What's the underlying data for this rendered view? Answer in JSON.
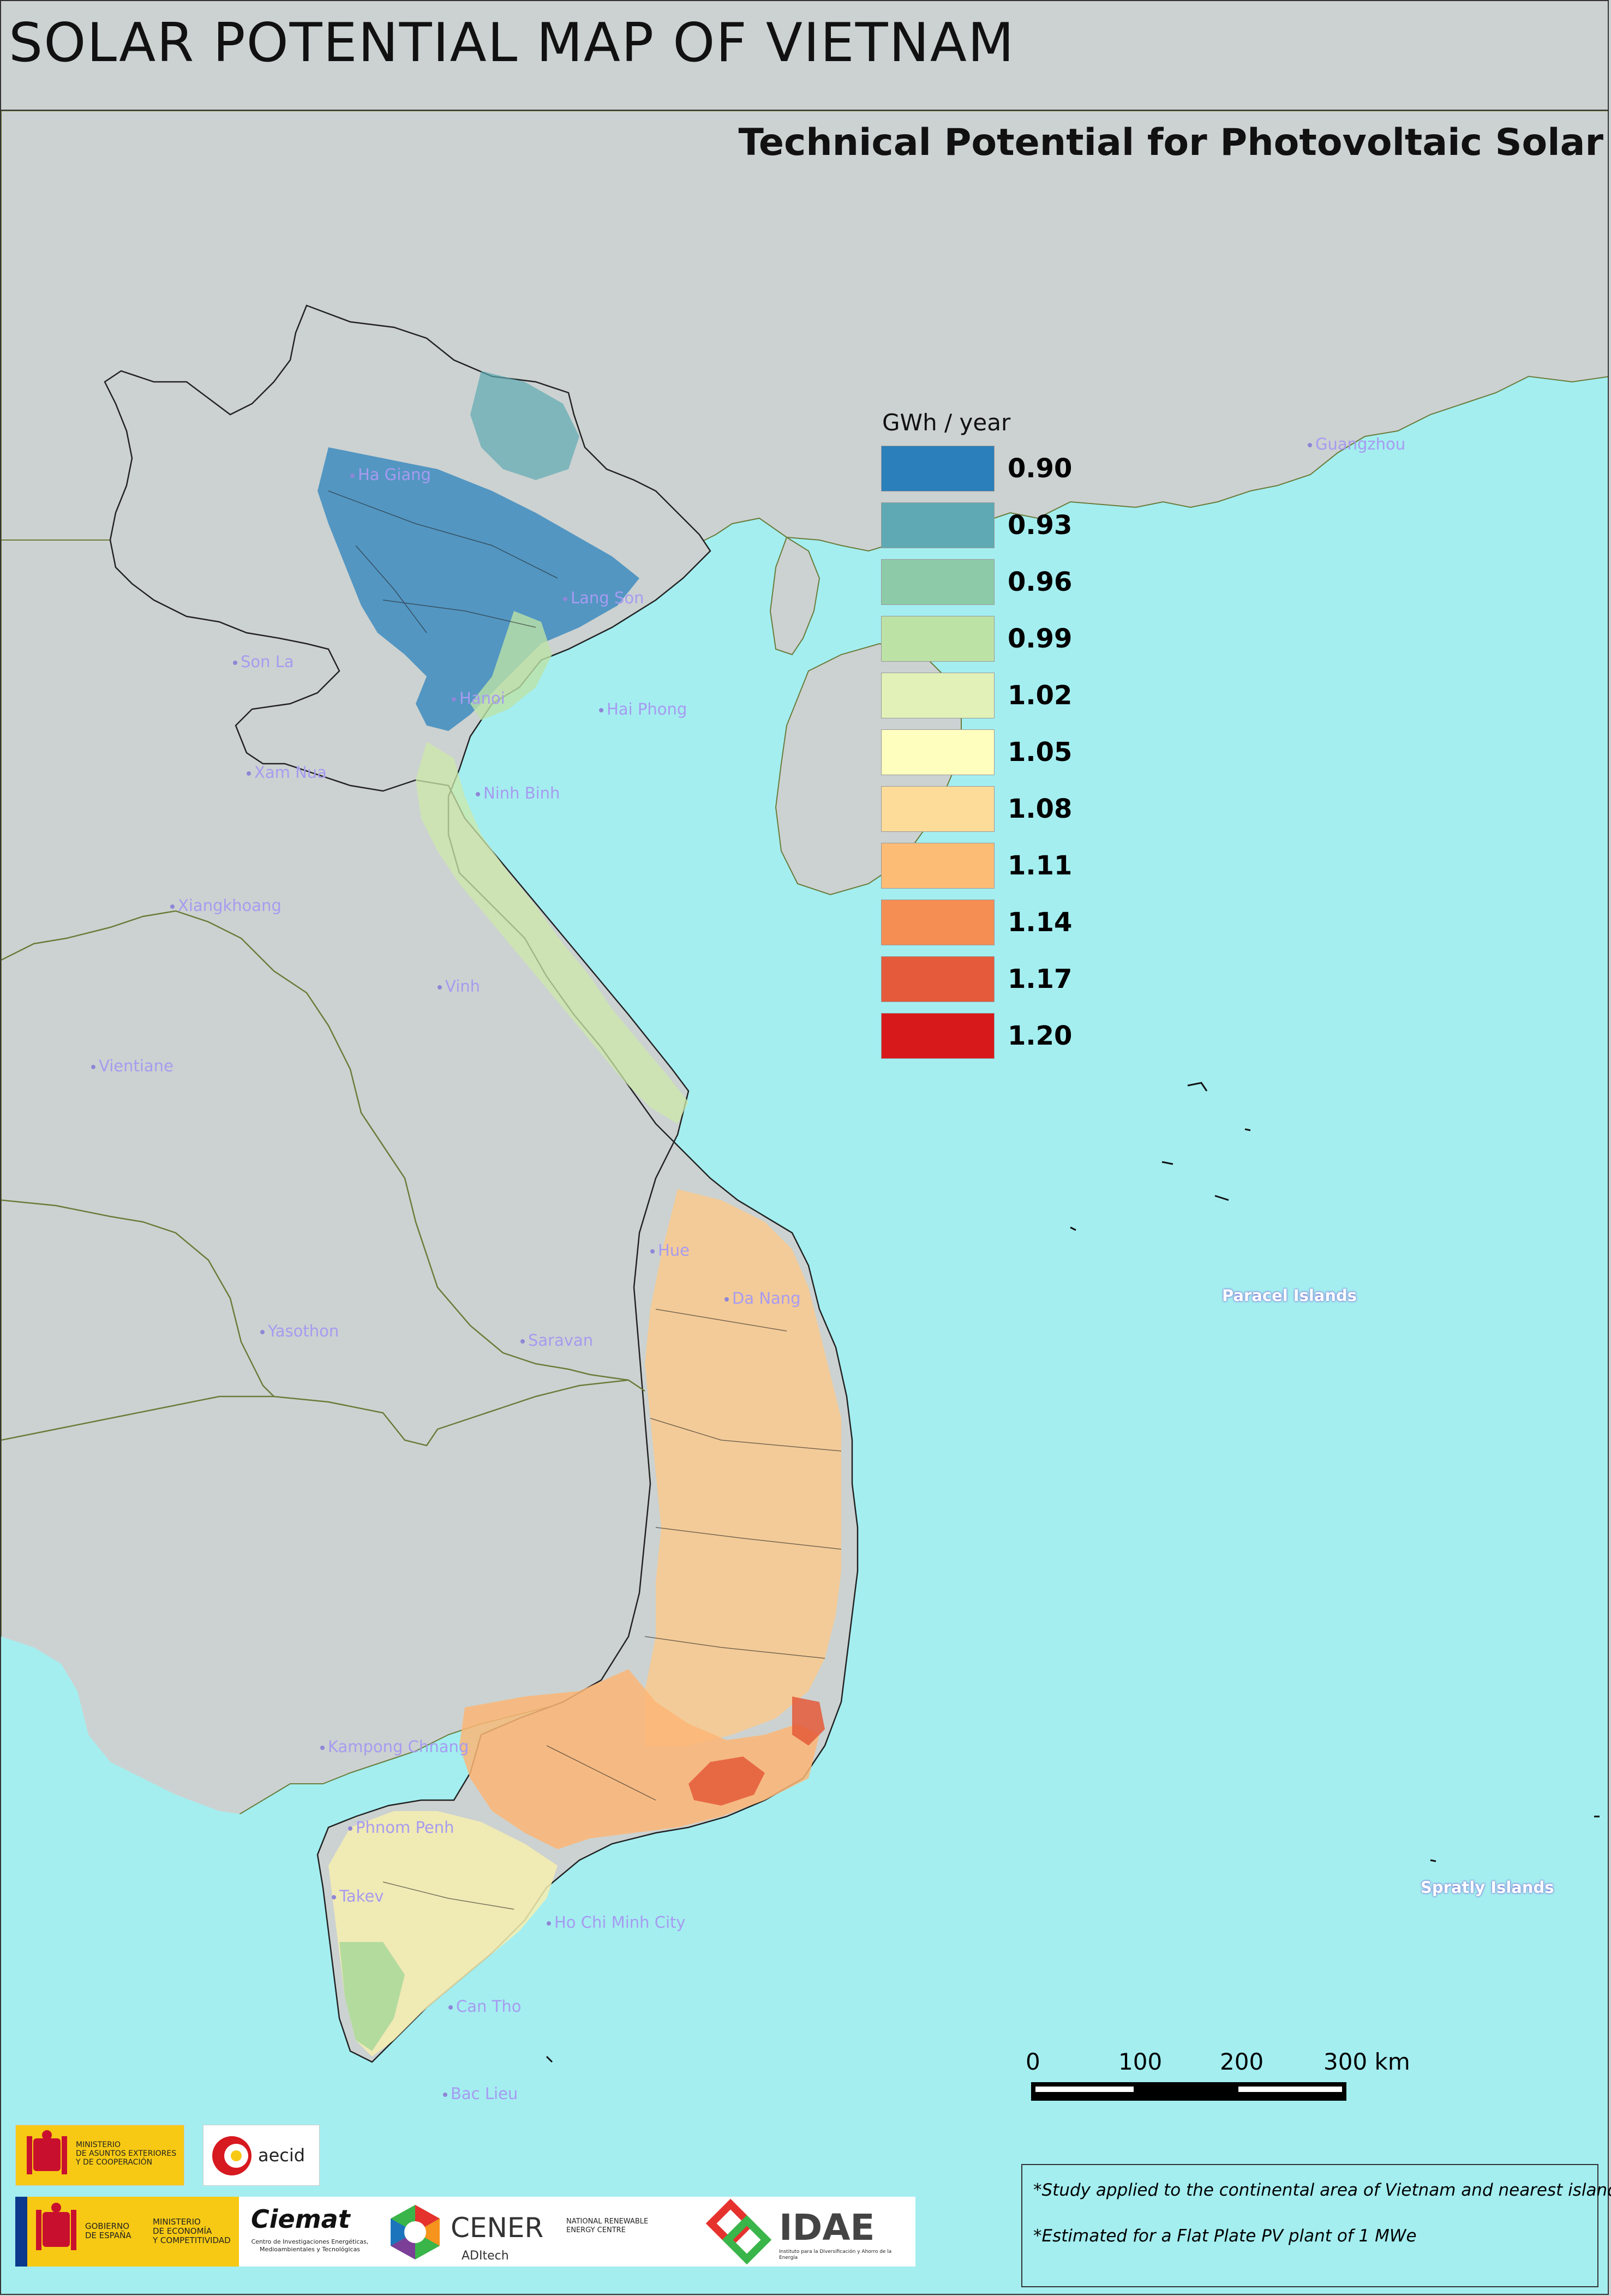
{
  "header": {
    "title": "SOLAR POTENTIAL MAP OF VIETNAM",
    "subtitle": "Technical Potential for Photovoltaic Solar"
  },
  "legend": {
    "unit": "GWh / year",
    "classes": [
      {
        "value": "0.90",
        "color": "#2b7fba"
      },
      {
        "value": "0.93",
        "color": "#5ea9b3"
      },
      {
        "value": "0.96",
        "color": "#8dcaa7"
      },
      {
        "value": "0.99",
        "color": "#bde2a6"
      },
      {
        "value": "1.02",
        "color": "#e2f1b8"
      },
      {
        "value": "1.05",
        "color": "#fefebf"
      },
      {
        "value": "1.08",
        "color": "#fddc9a"
      },
      {
        "value": "1.11",
        "color": "#fdbc75"
      },
      {
        "value": "1.14",
        "color": "#f58e53"
      },
      {
        "value": "1.17",
        "color": "#e45a3a"
      },
      {
        "value": "1.20",
        "color": "#d7191c"
      }
    ]
  },
  "places": [
    {
      "name": "Ha Giang"
    },
    {
      "name": "Lang Son"
    },
    {
      "name": "Son La"
    },
    {
      "name": "Hanoi"
    },
    {
      "name": "Hai Phong"
    },
    {
      "name": "Xam Nua"
    },
    {
      "name": "Ninh Binh"
    },
    {
      "name": "Xiangkhoang"
    },
    {
      "name": "Vinh"
    },
    {
      "name": "Vientiane"
    },
    {
      "name": "Hue"
    },
    {
      "name": "Da Nang"
    },
    {
      "name": "Yasothon"
    },
    {
      "name": "Saravan"
    },
    {
      "name": "Kampong Chnang"
    },
    {
      "name": "Phnom Penh"
    },
    {
      "name": "Takev"
    },
    {
      "name": "Ho Chi Minh City"
    },
    {
      "name": "Can Tho"
    },
    {
      "name": "Bac Lieu"
    },
    {
      "name": "Guangzhou"
    }
  ],
  "islands": {
    "paracel": "Paracel Islands",
    "spratly": "Spratly Islands"
  },
  "scale": {
    "ticks": [
      "0",
      "100",
      "200",
      "300 km"
    ]
  },
  "notes": [
    "*Study applied to the continental area of Vietnam and nearest islands",
    "*Estimated for a Flat Plate PV plant of 1 MWe"
  ],
  "logos": {
    "ministry_exteriores": "MINISTERIO\nDE ASUNTOS EXTERIORES\nY DE COOPERACIÓN",
    "aecid": "aecid",
    "gobierno": "GOBIERNO\nDE ESPAÑA",
    "ministry_economia": "MINISTERIO\nDE ECONOMÍA\nY COMPETITIVIDAD",
    "ciemat": "Ciemat",
    "ciemat_sub": "Centro de Investigaciones Energéticas, Medioambientales y Tecnológicas",
    "cener": "CENER",
    "cener_sub": "NATIONAL RENEWABLE ENERGY CENTRE",
    "aditech": "ADItech",
    "idae": "IDAE",
    "idae_sub": "Instituto para la Diversificación y Ahorro de la Energía"
  },
  "colors": {
    "sea": "#a4eef0",
    "land": "#ccd2d1",
    "border": "#6b7b3a"
  }
}
